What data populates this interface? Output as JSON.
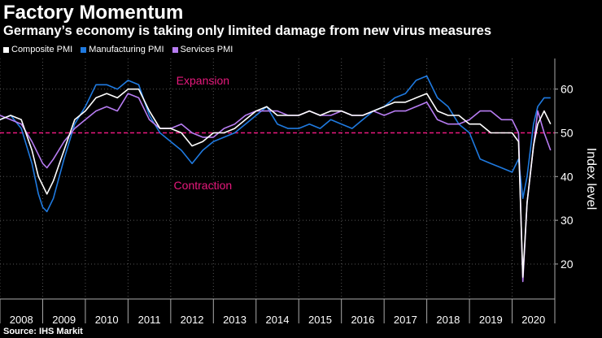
{
  "chart_data": {
    "type": "line",
    "title": "Factory Momentum",
    "subtitle": "Germany’s economy is taking only limited damage from new virus measures",
    "source": "Source: IHS Markit",
    "ylabel": "Index level",
    "ylim": [
      12,
      67
    ],
    "yticks": [
      20,
      30,
      40,
      50,
      60
    ],
    "xlim": [
      2008,
      2021
    ],
    "years": [
      "2008",
      "2009",
      "2010",
      "2011",
      "2012",
      "2013",
      "2014",
      "2015",
      "2016",
      "2017",
      "2018",
      "2019",
      "2020"
    ],
    "reference_line": 50,
    "annotations": [
      {
        "text": "Expansion",
        "x": 2011.8,
        "y": 62
      },
      {
        "text": "Contraction",
        "x": 2011.8,
        "y": 38
      }
    ],
    "colors": {
      "composite": "#ffffff",
      "manufacturing": "#1f7ae0",
      "services": "#b77cf2",
      "reference": "#e8197d",
      "grid": "#555555",
      "axis": "#aaaaaa"
    },
    "series": [
      {
        "name": "Composite PMI",
        "key": "composite",
        "x": [
          2008.0,
          2008.25,
          2008.5,
          2008.75,
          2008.9,
          2009.0,
          2009.1,
          2009.25,
          2009.5,
          2009.75,
          2010.0,
          2010.25,
          2010.5,
          2010.75,
          2011.0,
          2011.25,
          2011.5,
          2011.75,
          2012.0,
          2012.25,
          2012.5,
          2012.75,
          2013.0,
          2013.25,
          2013.5,
          2013.75,
          2014.0,
          2014.25,
          2014.5,
          2014.75,
          2015.0,
          2015.25,
          2015.5,
          2015.75,
          2016.0,
          2016.25,
          2016.5,
          2016.75,
          2017.0,
          2017.25,
          2017.5,
          2017.75,
          2018.0,
          2018.25,
          2018.5,
          2018.75,
          2019.0,
          2019.25,
          2019.5,
          2019.75,
          2020.0,
          2020.15,
          2020.25,
          2020.35,
          2020.5,
          2020.6,
          2020.75,
          2020.9
        ],
        "values": [
          53,
          54,
          53,
          46,
          40,
          38,
          36,
          39,
          46,
          53,
          55,
          58,
          59,
          58,
          60,
          60,
          55,
          51,
          51,
          50,
          47,
          48,
          50,
          50,
          51,
          53,
          55,
          56,
          54,
          54,
          54,
          55,
          54,
          55,
          55,
          54,
          54,
          55,
          56,
          57,
          57,
          58,
          59,
          55,
          54,
          54,
          52,
          52,
          50,
          50,
          50,
          48,
          17,
          34,
          47,
          52,
          55,
          52
        ]
      },
      {
        "name": "Manufacturing PMI",
        "key": "manufacturing",
        "x": [
          2008.0,
          2008.25,
          2008.5,
          2008.75,
          2008.9,
          2009.0,
          2009.1,
          2009.25,
          2009.5,
          2009.75,
          2010.0,
          2010.25,
          2010.5,
          2010.75,
          2011.0,
          2011.25,
          2011.5,
          2011.75,
          2012.0,
          2012.25,
          2012.5,
          2012.75,
          2013.0,
          2013.25,
          2013.5,
          2013.75,
          2014.0,
          2014.25,
          2014.5,
          2014.75,
          2015.0,
          2015.25,
          2015.5,
          2015.75,
          2016.0,
          2016.25,
          2016.5,
          2016.75,
          2017.0,
          2017.25,
          2017.5,
          2017.75,
          2018.0,
          2018.25,
          2018.5,
          2018.75,
          2019.0,
          2019.25,
          2019.5,
          2019.75,
          2020.0,
          2020.15,
          2020.25,
          2020.35,
          2020.5,
          2020.6,
          2020.75,
          2020.9
        ],
        "values": [
          53,
          54,
          51,
          43,
          36,
          33,
          32,
          35,
          44,
          52,
          56,
          61,
          61,
          60,
          62,
          61,
          54,
          50,
          48,
          46,
          43,
          46,
          48,
          49,
          50,
          52,
          54,
          56,
          52,
          51,
          51,
          52,
          51,
          53,
          52,
          51,
          53,
          55,
          56,
          58,
          59,
          62,
          63,
          58,
          56,
          52,
          50,
          44,
          43,
          42,
          41,
          44,
          35,
          40,
          52,
          56,
          58,
          58
        ]
      },
      {
        "name": "Services PMI",
        "key": "services",
        "x": [
          2008.0,
          2008.25,
          2008.5,
          2008.75,
          2008.9,
          2009.0,
          2009.1,
          2009.25,
          2009.5,
          2009.75,
          2010.0,
          2010.25,
          2010.5,
          2010.75,
          2011.0,
          2011.25,
          2011.5,
          2011.75,
          2012.0,
          2012.25,
          2012.5,
          2012.75,
          2013.0,
          2013.25,
          2013.5,
          2013.75,
          2014.0,
          2014.25,
          2014.5,
          2014.75,
          2015.0,
          2015.25,
          2015.5,
          2015.75,
          2016.0,
          2016.25,
          2016.5,
          2016.75,
          2017.0,
          2017.25,
          2017.5,
          2017.75,
          2018.0,
          2018.25,
          2018.5,
          2018.75,
          2019.0,
          2019.25,
          2019.5,
          2019.75,
          2020.0,
          2020.15,
          2020.25,
          2020.35,
          2020.5,
          2020.6,
          2020.75,
          2020.9
        ],
        "values": [
          54,
          53,
          52,
          48,
          45,
          43,
          42,
          44,
          48,
          51,
          53,
          55,
          56,
          55,
          59,
          58,
          53,
          51,
          51,
          52,
          50,
          49,
          49,
          51,
          52,
          54,
          55,
          55,
          55,
          54,
          54,
          55,
          54,
          54,
          55,
          54,
          54,
          55,
          54,
          55,
          55,
          56,
          57,
          53,
          52,
          52,
          53,
          55,
          55,
          53,
          53,
          50,
          16,
          34,
          47,
          55,
          50,
          46
        ]
      }
    ]
  }
}
